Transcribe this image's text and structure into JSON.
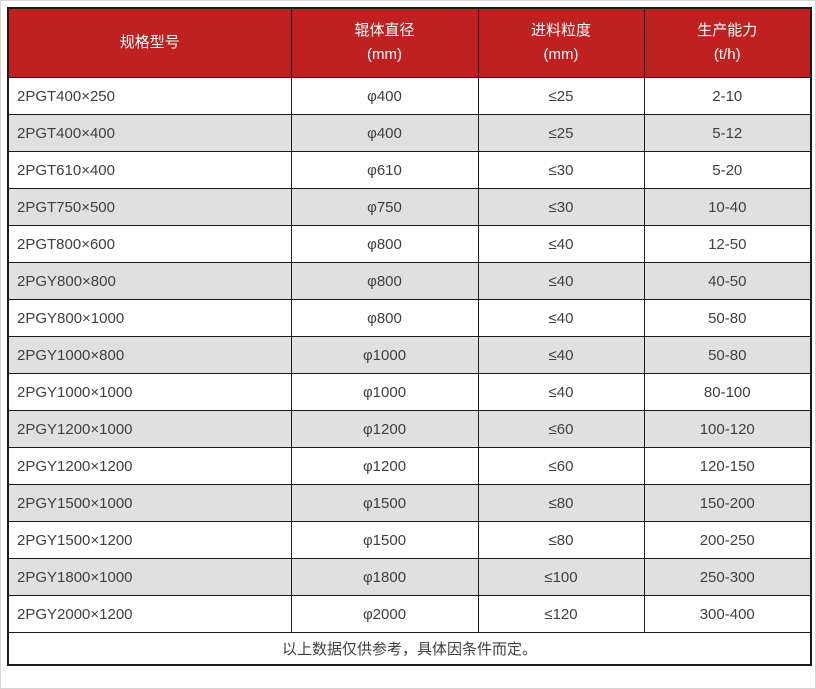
{
  "colors": {
    "header_bg": "#bf2121",
    "header_text": "#ffffff",
    "row_bg": "#ffffff",
    "row_alt_bg": "#e0e0e0",
    "border": "#1a1a1a",
    "text": "#404040"
  },
  "table": {
    "columns": [
      {
        "label": "规格型号",
        "unit": ""
      },
      {
        "label": "辊体直径",
        "unit": "(mm)"
      },
      {
        "label": "进料粒度",
        "unit": "(mm)"
      },
      {
        "label": "生产能力",
        "unit": "(t/h)"
      }
    ],
    "rows": [
      [
        "2PGT400×250",
        "φ400",
        "≤25",
        "2-10"
      ],
      [
        "2PGT400×400",
        "φ400",
        "≤25",
        "5-12"
      ],
      [
        "2PGT610×400",
        "φ610",
        "≤30",
        "5-20"
      ],
      [
        "2PGT750×500",
        "φ750",
        "≤30",
        "10-40"
      ],
      [
        "2PGT800×600",
        "φ800",
        "≤40",
        "12-50"
      ],
      [
        "2PGY800×800",
        "φ800",
        "≤40",
        "40-50"
      ],
      [
        "2PGY800×1000",
        "φ800",
        "≤40",
        "50-80"
      ],
      [
        "2PGY1000×800",
        "φ1000",
        "≤40",
        "50-80"
      ],
      [
        "2PGY1000×1000",
        "φ1000",
        "≤40",
        "80-100"
      ],
      [
        "2PGY1200×1000",
        "φ1200",
        "≤60",
        "100-120"
      ],
      [
        "2PGY1200×1200",
        "φ1200",
        "≤60",
        "120-150"
      ],
      [
        "2PGY1500×1000",
        "φ1500",
        "≤80",
        "150-200"
      ],
      [
        "2PGY1500×1200",
        "φ1500",
        "≤80",
        "200-250"
      ],
      [
        "2PGY1800×1000",
        "φ1800",
        "≤100",
        "250-300"
      ],
      [
        "2PGY2000×1200",
        "φ2000",
        "≤120",
        "300-400"
      ]
    ],
    "footnote": "以上数据仅供参考，具体因条件而定。"
  },
  "chart_data": {
    "type": "table",
    "title": "",
    "columns": [
      "规格型号",
      "辊体直径 (mm)",
      "进料粒度 (mm)",
      "生产能力 (t/h)"
    ],
    "rows": [
      [
        "2PGT400×250",
        "φ400",
        "≤25",
        "2-10"
      ],
      [
        "2PGT400×400",
        "φ400",
        "≤25",
        "5-12"
      ],
      [
        "2PGT610×400",
        "φ610",
        "≤30",
        "5-20"
      ],
      [
        "2PGT750×500",
        "φ750",
        "≤30",
        "10-40"
      ],
      [
        "2PGT800×600",
        "φ800",
        "≤40",
        "12-50"
      ],
      [
        "2PGY800×800",
        "φ800",
        "≤40",
        "40-50"
      ],
      [
        "2PGY800×1000",
        "φ800",
        "≤40",
        "50-80"
      ],
      [
        "2PGY1000×800",
        "φ1000",
        "≤40",
        "50-80"
      ],
      [
        "2PGY1000×1000",
        "φ1000",
        "≤40",
        "80-100"
      ],
      [
        "2PGY1200×1000",
        "φ1200",
        "≤60",
        "100-120"
      ],
      [
        "2PGY1200×1200",
        "φ1200",
        "≤60",
        "120-150"
      ],
      [
        "2PGY1500×1000",
        "φ1500",
        "≤80",
        "150-200"
      ],
      [
        "2PGY1500×1200",
        "φ1500",
        "≤80",
        "200-250"
      ],
      [
        "2PGY1800×1000",
        "φ1800",
        "≤100",
        "250-300"
      ],
      [
        "2PGY2000×1200",
        "φ2000",
        "≤120",
        "300-400"
      ]
    ],
    "footnote": "以上数据仅供参考，具体因条件而定。"
  }
}
